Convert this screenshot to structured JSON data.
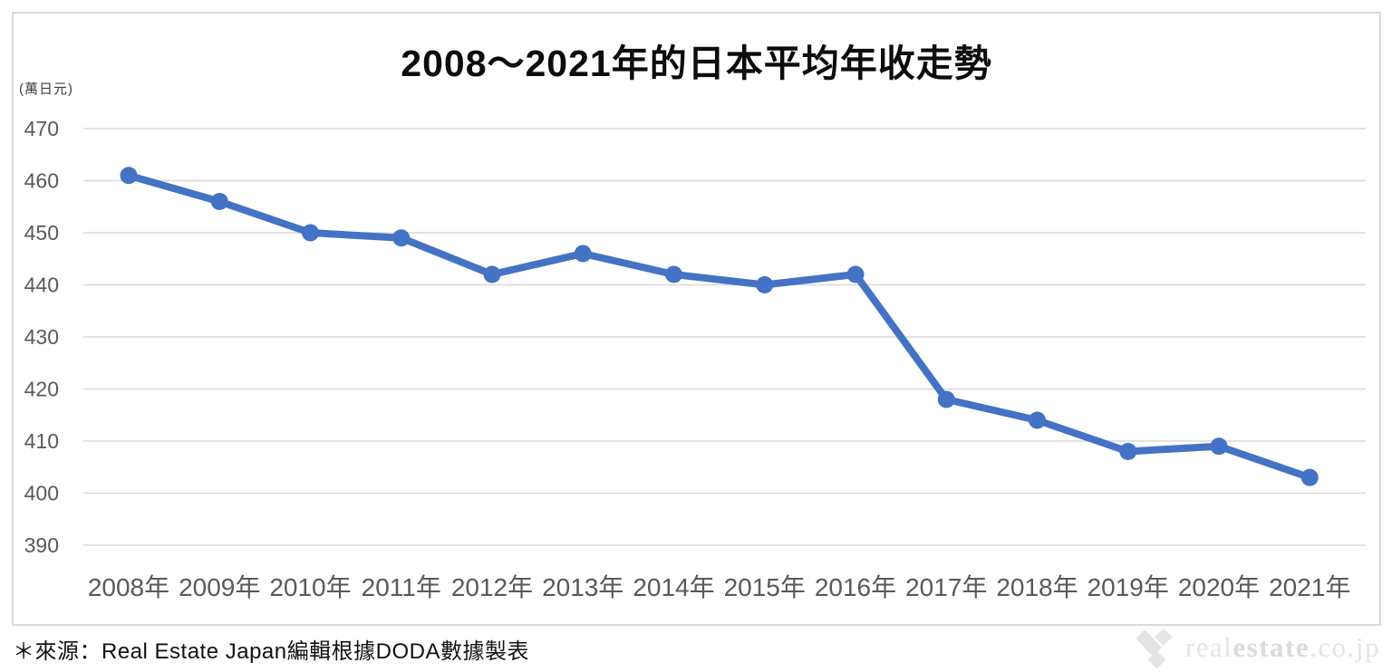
{
  "chart_data": {
    "type": "line",
    "title": "2008〜2021年的日本平均年收走勢",
    "unit_label": "(萬日元)",
    "categories": [
      "2008年",
      "2009年",
      "2010年",
      "2011年",
      "2012年",
      "2013年",
      "2014年",
      "2015年",
      "2016年",
      "2017年",
      "2018年",
      "2019年",
      "2020年",
      "2021年"
    ],
    "values": [
      461,
      456,
      450,
      449,
      442,
      446,
      442,
      440,
      442,
      418,
      414,
      408,
      409,
      403
    ],
    "yticks": [
      470,
      460,
      450,
      440,
      430,
      420,
      410,
      400,
      390
    ],
    "ylim": [
      390,
      470
    ],
    "ytick_interval": 10,
    "xlabel": "",
    "ylabel": "萬日元",
    "grid": true,
    "legend": "none",
    "marker": "circle"
  },
  "footer": {
    "source_note": "＊來源：Real Estate Japan編輯根據DODA數據製表",
    "logo": {
      "icon": "diamond-cluster-icon",
      "part_real": "real",
      "part_estate": "estate",
      "part_domain": ".co.jp"
    }
  },
  "colors": {
    "line": "#4472C4",
    "marker": "#4472C4",
    "grid": "#d8d8d8",
    "frame_border": "#dadada",
    "axis_text": "#595959",
    "title_text": "#0c0c0c",
    "source_text": "#111111",
    "logo_light": "#e6e4e4",
    "logo_bold": "#dcdada",
    "background": "#ffffff"
  }
}
